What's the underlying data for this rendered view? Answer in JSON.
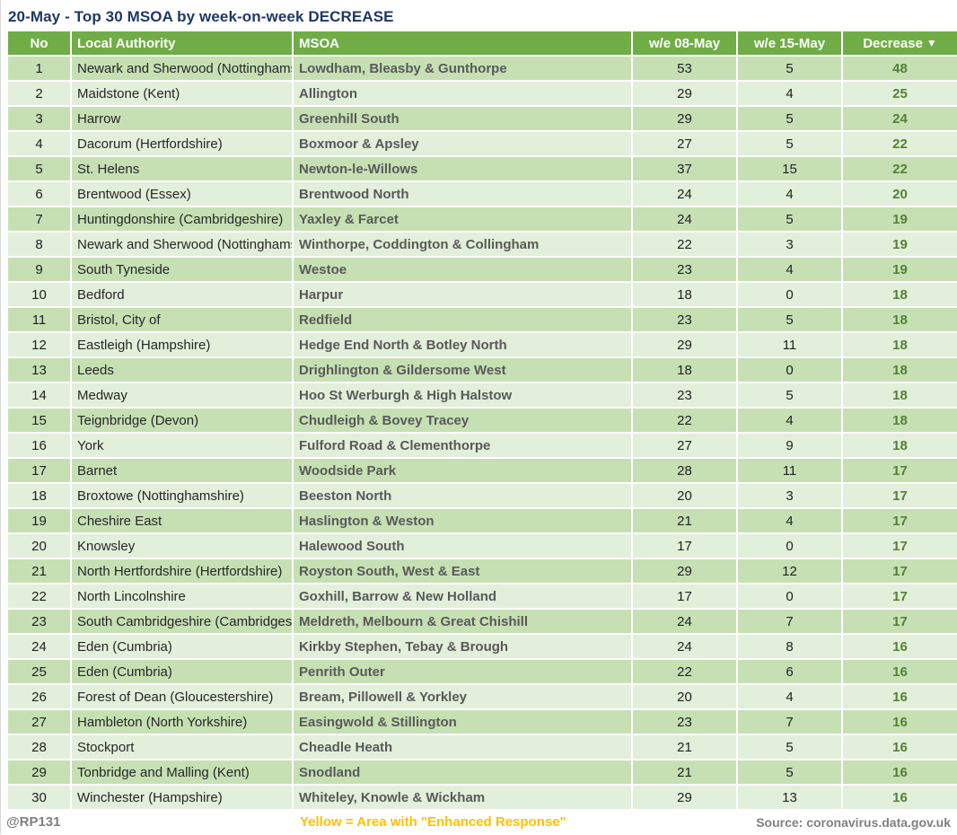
{
  "title": "20-May - Top 30 MSOA by week-on-week DECREASE",
  "table": {
    "columns": [
      "No",
      "Local Authority",
      "MSOA",
      "w/e 08-May",
      "w/e 15-May",
      "Decrease"
    ],
    "sort_icon": "▼",
    "sorted_by": "Decrease",
    "sort_direction": "descending",
    "rows": [
      {
        "no": 1,
        "local_authority": "Newark and Sherwood (Nottinghamshire)",
        "msoa": "Lowdham, Bleasby & Gunthorpe",
        "we_08_may": 53,
        "we_15_may": 5,
        "decrease": 48
      },
      {
        "no": 2,
        "local_authority": "Maidstone (Kent)",
        "msoa": "Allington",
        "we_08_may": 29,
        "we_15_may": 4,
        "decrease": 25
      },
      {
        "no": 3,
        "local_authority": "Harrow",
        "msoa": "Greenhill South",
        "we_08_may": 29,
        "we_15_may": 5,
        "decrease": 24
      },
      {
        "no": 4,
        "local_authority": "Dacorum (Hertfordshire)",
        "msoa": "Boxmoor & Apsley",
        "we_08_may": 27,
        "we_15_may": 5,
        "decrease": 22
      },
      {
        "no": 5,
        "local_authority": "St. Helens",
        "msoa": "Newton-le-Willows",
        "we_08_may": 37,
        "we_15_may": 15,
        "decrease": 22
      },
      {
        "no": 6,
        "local_authority": "Brentwood (Essex)",
        "msoa": "Brentwood North",
        "we_08_may": 24,
        "we_15_may": 4,
        "decrease": 20
      },
      {
        "no": 7,
        "local_authority": "Huntingdonshire (Cambridgeshire)",
        "msoa": "Yaxley & Farcet",
        "we_08_may": 24,
        "we_15_may": 5,
        "decrease": 19
      },
      {
        "no": 8,
        "local_authority": "Newark and Sherwood (Nottinghamshire)",
        "msoa": "Winthorpe, Coddington & Collingham",
        "we_08_may": 22,
        "we_15_may": 3,
        "decrease": 19
      },
      {
        "no": 9,
        "local_authority": "South Tyneside",
        "msoa": "Westoe",
        "we_08_may": 23,
        "we_15_may": 4,
        "decrease": 19
      },
      {
        "no": 10,
        "local_authority": "Bedford",
        "msoa": "Harpur",
        "we_08_may": 18,
        "we_15_may": 0,
        "decrease": 18
      },
      {
        "no": 11,
        "local_authority": "Bristol, City of",
        "msoa": "Redfield",
        "we_08_may": 23,
        "we_15_may": 5,
        "decrease": 18
      },
      {
        "no": 12,
        "local_authority": "Eastleigh (Hampshire)",
        "msoa": "Hedge End North & Botley North",
        "we_08_may": 29,
        "we_15_may": 11,
        "decrease": 18
      },
      {
        "no": 13,
        "local_authority": "Leeds",
        "msoa": "Drighlington & Gildersome West",
        "we_08_may": 18,
        "we_15_may": 0,
        "decrease": 18
      },
      {
        "no": 14,
        "local_authority": "Medway",
        "msoa": "Hoo St Werburgh & High Halstow",
        "we_08_may": 23,
        "we_15_may": 5,
        "decrease": 18
      },
      {
        "no": 15,
        "local_authority": "Teignbridge (Devon)",
        "msoa": "Chudleigh & Bovey Tracey",
        "we_08_may": 22,
        "we_15_may": 4,
        "decrease": 18
      },
      {
        "no": 16,
        "local_authority": "York",
        "msoa": "Fulford Road & Clementhorpe",
        "we_08_may": 27,
        "we_15_may": 9,
        "decrease": 18
      },
      {
        "no": 17,
        "local_authority": "Barnet",
        "msoa": "Woodside Park",
        "we_08_may": 28,
        "we_15_may": 11,
        "decrease": 17
      },
      {
        "no": 18,
        "local_authority": "Broxtowe (Nottinghamshire)",
        "msoa": "Beeston North",
        "we_08_may": 20,
        "we_15_may": 3,
        "decrease": 17
      },
      {
        "no": 19,
        "local_authority": "Cheshire East",
        "msoa": "Haslington & Weston",
        "we_08_may": 21,
        "we_15_may": 4,
        "decrease": 17
      },
      {
        "no": 20,
        "local_authority": "Knowsley",
        "msoa": "Halewood South",
        "we_08_may": 17,
        "we_15_may": 0,
        "decrease": 17
      },
      {
        "no": 21,
        "local_authority": "North Hertfordshire (Hertfordshire)",
        "msoa": "Royston South, West & East",
        "we_08_may": 29,
        "we_15_may": 12,
        "decrease": 17
      },
      {
        "no": 22,
        "local_authority": "North Lincolnshire",
        "msoa": "Goxhill, Barrow & New Holland",
        "we_08_may": 17,
        "we_15_may": 0,
        "decrease": 17
      },
      {
        "no": 23,
        "local_authority": "South Cambridgeshire (Cambridgeshire)",
        "msoa": "Meldreth, Melbourn & Great Chishill",
        "we_08_may": 24,
        "we_15_may": 7,
        "decrease": 17
      },
      {
        "no": 24,
        "local_authority": "Eden (Cumbria)",
        "msoa": "Kirkby Stephen, Tebay & Brough",
        "we_08_may": 24,
        "we_15_may": 8,
        "decrease": 16
      },
      {
        "no": 25,
        "local_authority": "Eden (Cumbria)",
        "msoa": "Penrith Outer",
        "we_08_may": 22,
        "we_15_may": 6,
        "decrease": 16
      },
      {
        "no": 26,
        "local_authority": "Forest of Dean (Gloucestershire)",
        "msoa": "Bream, Pillowell & Yorkley",
        "we_08_may": 20,
        "we_15_may": 4,
        "decrease": 16
      },
      {
        "no": 27,
        "local_authority": "Hambleton (North Yorkshire)",
        "msoa": "Easingwold & Stillington",
        "we_08_may": 23,
        "we_15_may": 7,
        "decrease": 16
      },
      {
        "no": 28,
        "local_authority": "Stockport",
        "msoa": "Cheadle Heath",
        "we_08_may": 21,
        "we_15_may": 5,
        "decrease": 16
      },
      {
        "no": 29,
        "local_authority": "Tonbridge and Malling (Kent)",
        "msoa": "Snodland",
        "we_08_may": 21,
        "we_15_may": 5,
        "decrease": 16
      },
      {
        "no": 30,
        "local_authority": "Winchester (Hampshire)",
        "msoa": "Whiteley, Knowle & Wickham",
        "we_08_may": 29,
        "we_15_may": 13,
        "decrease": 16
      }
    ]
  },
  "footer": {
    "handle": "@RP131",
    "note": "Yellow = Area with \"Enhanced Response\"",
    "source": "Source: coronavirus.data.gov.uk"
  },
  "colors": {
    "header_green": "#70ad47",
    "row_dark_green": "#c6e0b4",
    "row_light_green": "#e2efda",
    "decrease_text_green": "#538135",
    "title_navy": "#1f3864",
    "footer_gray": "#808080",
    "note_yellow": "#ffc000"
  }
}
